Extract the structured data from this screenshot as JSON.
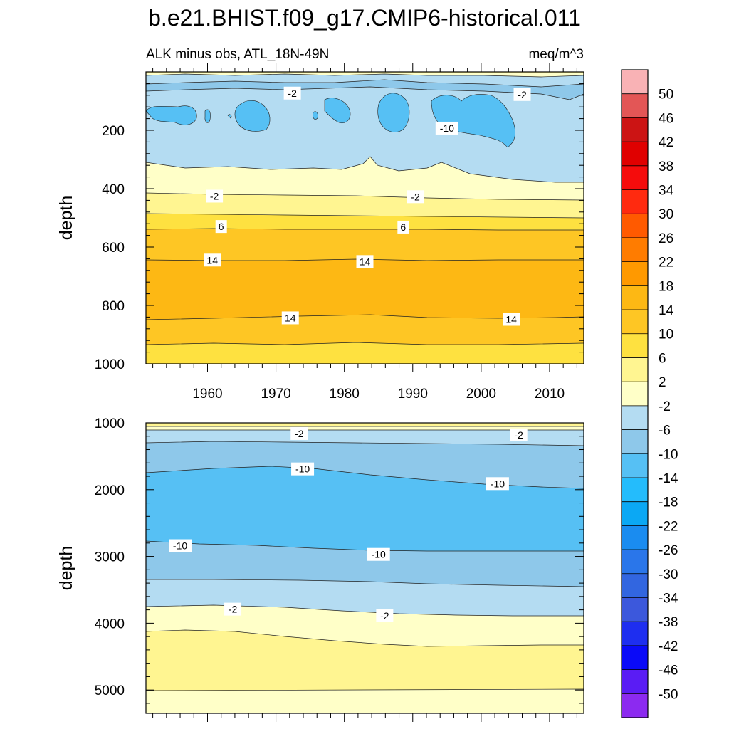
{
  "title": "b.e21.BHIST.f09_g17.CMIP6-historical.011",
  "subtitle_left": "ALK minus obs, ATL_18N-49N",
  "subtitle_right": "meq/m^3",
  "colorbar": {
    "levels": [
      "50",
      "46",
      "42",
      "38",
      "34",
      "30",
      "26",
      "22",
      "18",
      "14",
      "10",
      "6",
      "2",
      "-2",
      "-6",
      "-10",
      "-14",
      "-18",
      "-22",
      "-26",
      "-30",
      "-34",
      "-38",
      "-42",
      "-46",
      "-50"
    ],
    "colors": [
      "#f9b2b5",
      "#e35656",
      "#cc1414",
      "#e00000",
      "#f50c0c",
      "#ff2a0f",
      "#ff5a00",
      "#ff7c00",
      "#ff9900",
      "#fdb814",
      "#fec624",
      "#fee140",
      "#fff591",
      "#ffffc8",
      "#b4dcf2",
      "#8ec8ea",
      "#56c0f4",
      "#24bcfc",
      "#0ba8f4",
      "#1a8cf0",
      "#2a76ea",
      "#3266e0",
      "#3c58dc",
      "#1e2ef0",
      "#0a0af8",
      "#5a1cf4",
      "#8c2af0"
    ]
  },
  "chart_data": [
    {
      "type": "heatmap",
      "panel": "upper",
      "x_ticks": [
        "1960",
        "1970",
        "1980",
        "1990",
        "2000",
        "2010"
      ],
      "xlim": [
        1951,
        2015
      ],
      "ylabel": "depth",
      "y_ticks": [
        "200",
        "400",
        "600",
        "800",
        "1000"
      ],
      "ylim": [
        0,
        1000
      ],
      "y_reversed": true,
      "contour_labels": [
        {
          "text": "-2",
          "x": 1972.4,
          "y": 75
        },
        {
          "text": "-2",
          "x": 2006.0,
          "y": 80
        },
        {
          "text": "-10",
          "x": 1995.0,
          "y": 195
        },
        {
          "text": "-2",
          "x": 1961.0,
          "y": 428
        },
        {
          "text": "-2",
          "x": 1990.4,
          "y": 430
        },
        {
          "text": "6",
          "x": 1962.0,
          "y": 532
        },
        {
          "text": "6",
          "x": 1988.6,
          "y": 534
        },
        {
          "text": "14",
          "x": 1960.7,
          "y": 647
        },
        {
          "text": "14",
          "x": 1983.0,
          "y": 652
        },
        {
          "text": "14",
          "x": 1972.1,
          "y": 845
        },
        {
          "text": "14",
          "x": 2004.4,
          "y": 850
        }
      ]
    },
    {
      "type": "heatmap",
      "panel": "lower",
      "ylabel": "depth",
      "y_ticks": [
        "1000",
        "2000",
        "3000",
        "4000",
        "5000"
      ],
      "ylim": [
        1000,
        5350
      ],
      "y_reversed": true,
      "xlim": [
        1951,
        2015
      ],
      "contour_labels": [
        {
          "text": "-2",
          "x": 1973.4,
          "y": 1170
        },
        {
          "text": "-2",
          "x": 2005.5,
          "y": 1190
        },
        {
          "text": "-10",
          "x": 1973.9,
          "y": 1700
        },
        {
          "text": "-10",
          "x": 2002.4,
          "y": 1920
        },
        {
          "text": "-10",
          "x": 1956.0,
          "y": 2850
        },
        {
          "text": "-10",
          "x": 1985.0,
          "y": 2980
        },
        {
          "text": "-2",
          "x": 1963.7,
          "y": 3800
        },
        {
          "text": "-2",
          "x": 1985.9,
          "y": 3900
        }
      ]
    }
  ]
}
